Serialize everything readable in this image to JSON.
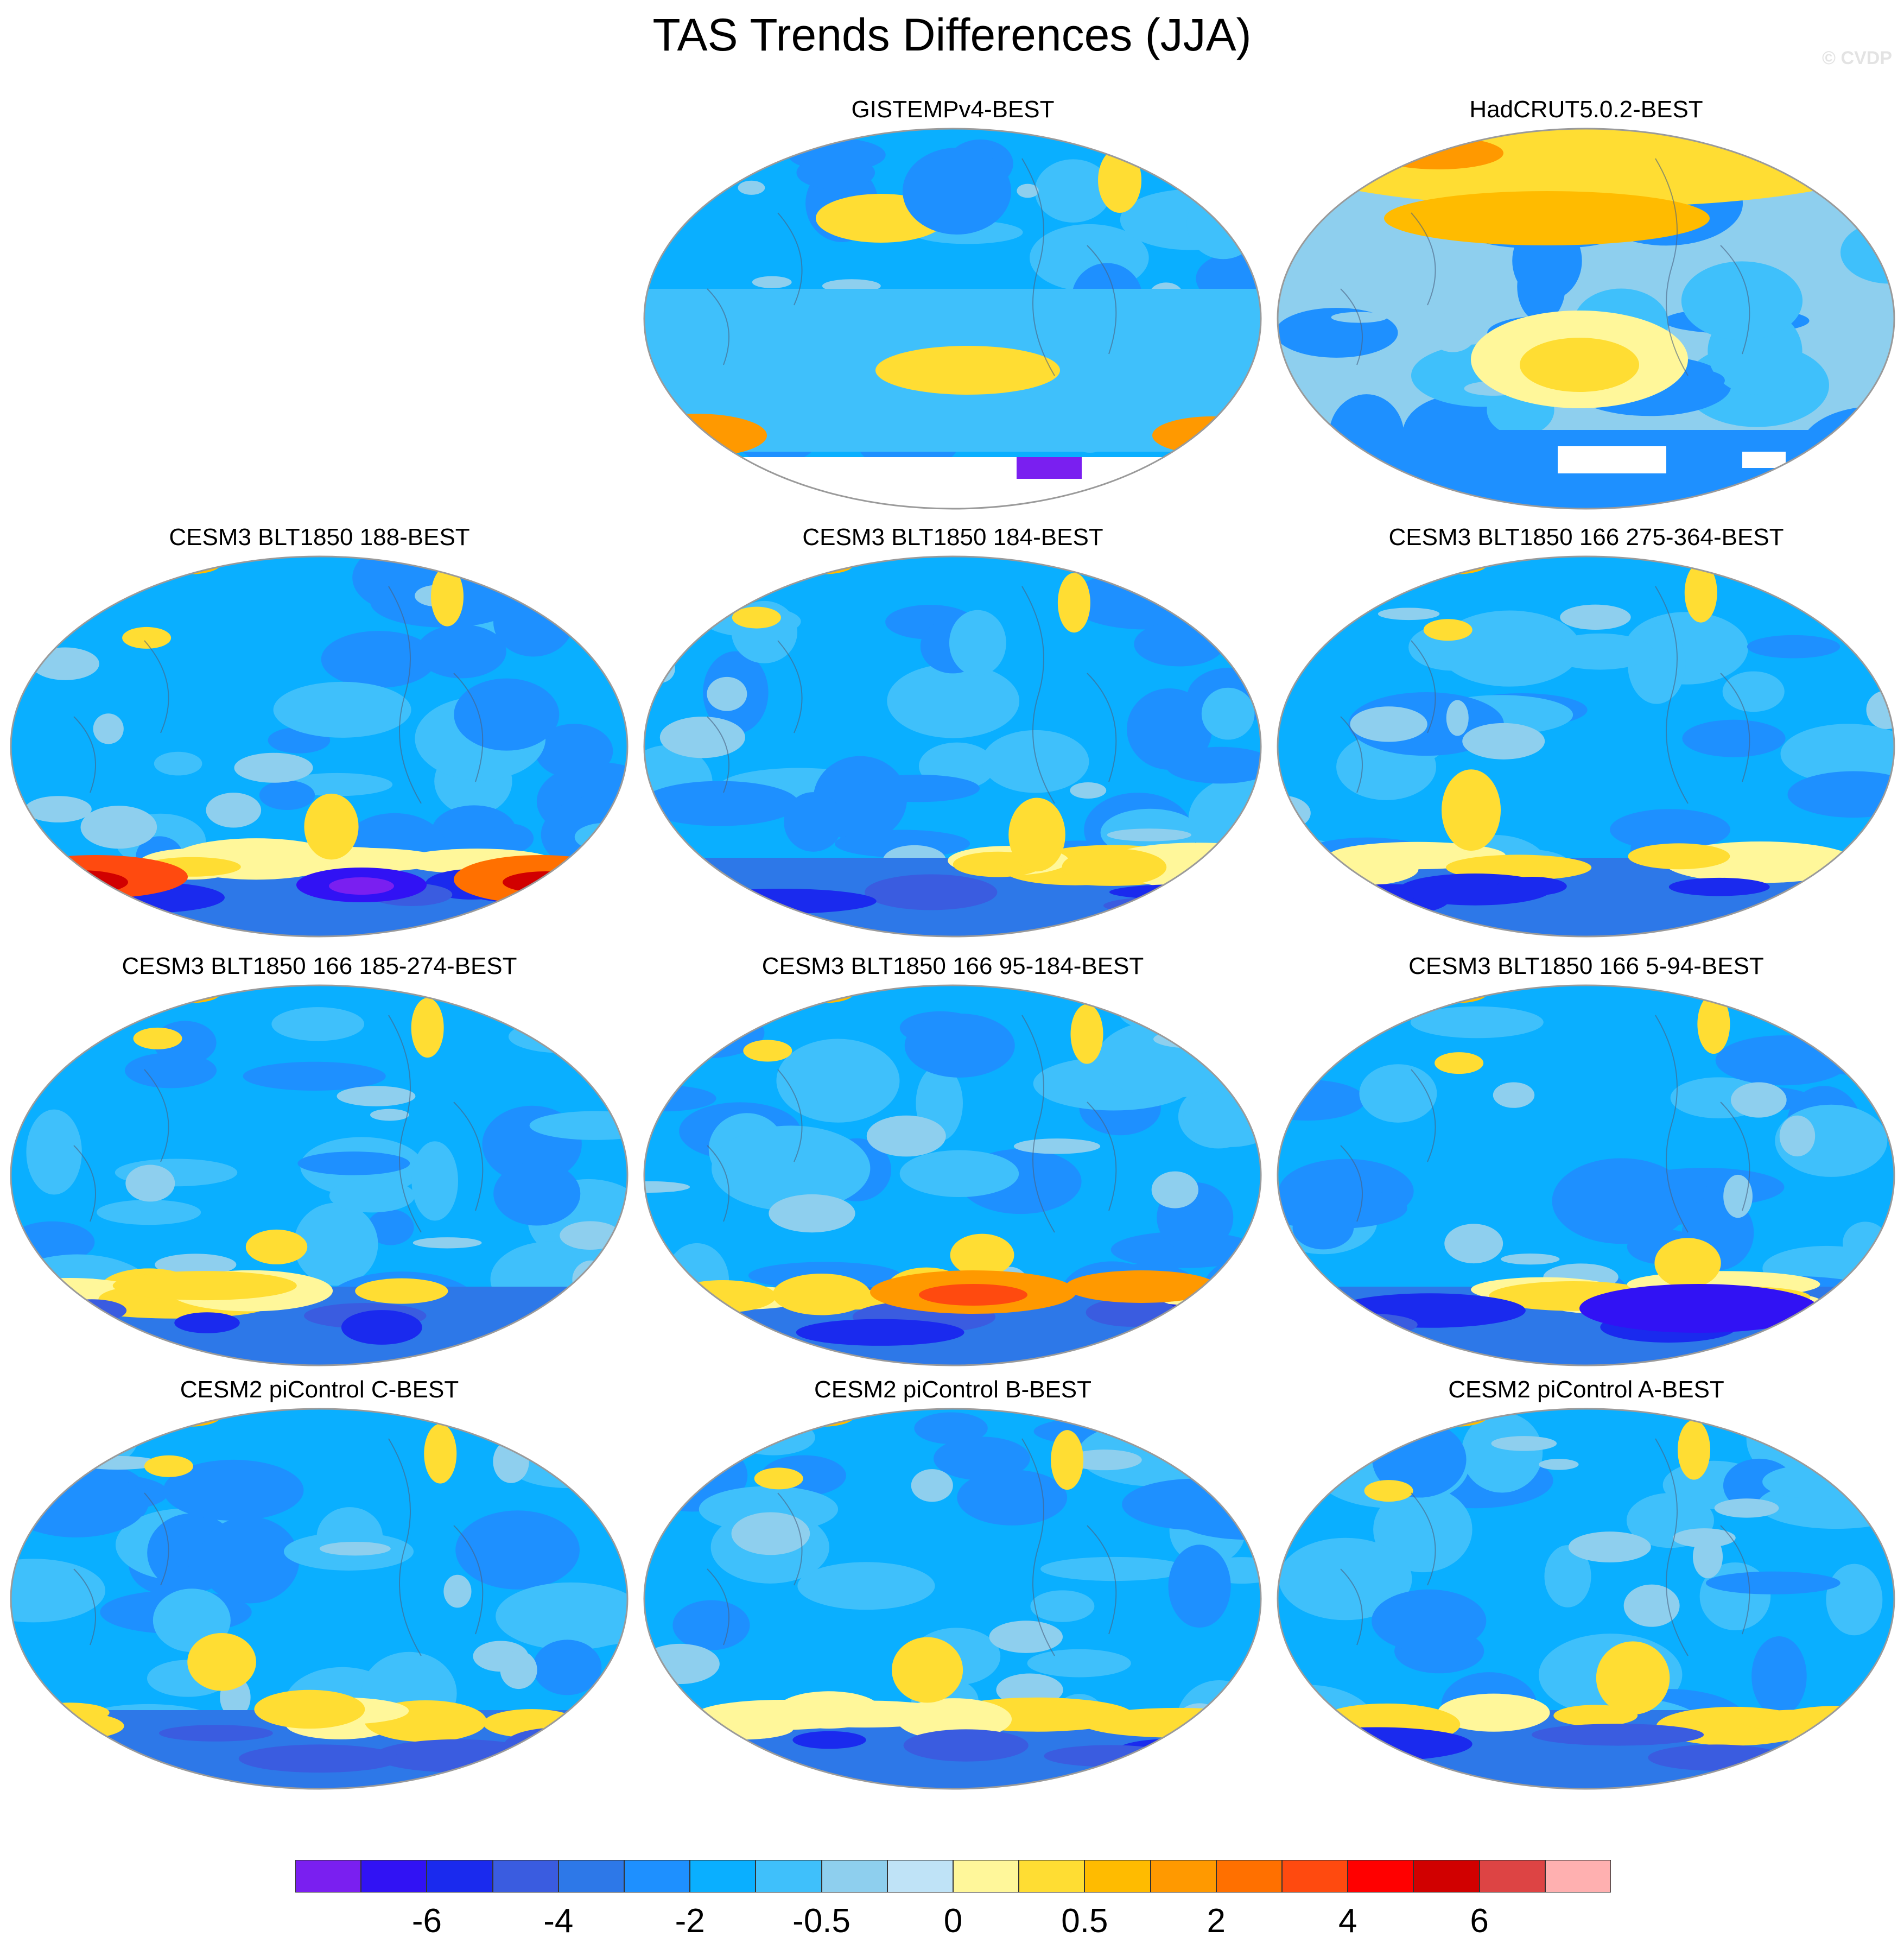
{
  "figure": {
    "title": "TAS Trends Differences (JJA)",
    "watermark": "© CVDP"
  },
  "panels": [
    {
      "title": "GISTEMPv4-BEST",
      "pattern": "gistemp"
    },
    {
      "title": "HadCRUT5.0.2-BEST",
      "pattern": "hadcrut"
    },
    {
      "title": "CESM3 BLT1850 188-BEST",
      "pattern": "model"
    },
    {
      "title": "CESM3 BLT1850 184-BEST",
      "pattern": "model"
    },
    {
      "title": "CESM3 BLT1850 166 275-364-BEST",
      "pattern": "model"
    },
    {
      "title": "CESM3 BLT1850 166 185-274-BEST",
      "pattern": "model"
    },
    {
      "title": "CESM3 BLT1850 166 95-184-BEST",
      "pattern": "model"
    },
    {
      "title": "CESM3 BLT1850 166 5-94-BEST",
      "pattern": "model"
    },
    {
      "title": "CESM2 piControl C-BEST",
      "pattern": "model"
    },
    {
      "title": "CESM2 piControl B-BEST",
      "pattern": "model"
    },
    {
      "title": "CESM2 piControl A-BEST",
      "pattern": "model"
    }
  ],
  "colorbar": {
    "colors": [
      "#7a1ff0",
      "#3112f4",
      "#1a2aee",
      "#3a5ce0",
      "#2d78e8",
      "#1e90ff",
      "#0aafff",
      "#3fc0fb",
      "#8ecfee",
      "#bfe3f7",
      "#fff79a",
      "#ffdd33",
      "#ffbb00",
      "#ff9900",
      "#ff7000",
      "#ff4a0f",
      "#ff0000",
      "#d10000",
      "#dd4444",
      "#ffb0b0"
    ],
    "labels": [
      "-6",
      "-4",
      "-2",
      "-0.5",
      "0",
      "0.5",
      "2",
      "4",
      "6"
    ],
    "label_boundaries": [
      2,
      4,
      6,
      8,
      10,
      12,
      14,
      16,
      18
    ]
  }
}
